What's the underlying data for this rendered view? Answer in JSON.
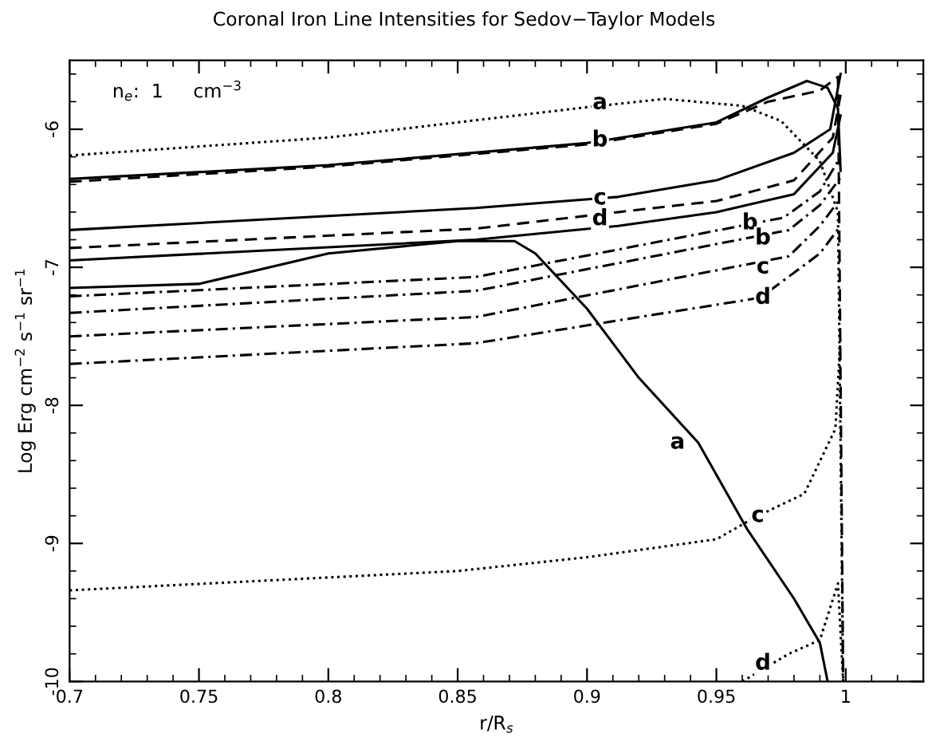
{
  "chart_data": {
    "type": "line",
    "title": "Coronal Iron Line Intensities for Sedov−Taylor Models",
    "xlabel": "r/R$_{s}$",
    "ylabel": "Log Erg cm$^{−2}$ s$^{−1}$ sr$^{−1}$",
    "xlim": [
      0.7,
      1.03
    ],
    "xticks": [
      0.7,
      0.75,
      0.8,
      0.85,
      0.9,
      0.95,
      1
    ],
    "ylim": [
      -10,
      -5.5
    ],
    "yticks": [
      -10,
      -9,
      -8,
      -7,
      -6
    ],
    "grid": false,
    "legend": false,
    "marker": "none",
    "series": [
      {
        "color": "#000000",
        "line_style": "dotted",
        "x": [
          0.7,
          0.8,
          0.9,
          0.93,
          0.96,
          0.975,
          0.99,
          0.997,
          0.999
        ],
        "values": [
          -6.19,
          -6.06,
          -5.84,
          -5.78,
          -5.83,
          -5.94,
          -6.23,
          -6.6,
          -10
        ]
      },
      {
        "color": "#000000",
        "line_style": "solid",
        "x": [
          0.7,
          0.8,
          0.9,
          0.95,
          0.97,
          0.985,
          0.993,
          0.997,
          0.998
        ],
        "values": [
          -6.36,
          -6.26,
          -6.1,
          -5.95,
          -5.77,
          -5.65,
          -5.7,
          -5.85,
          -6.3
        ]
      },
      {
        "color": "#000000",
        "line_style": "dashed",
        "x": [
          0.7,
          0.8,
          0.9,
          0.95,
          0.97,
          0.99,
          0.997,
          0.999
        ],
        "values": [
          -6.38,
          -6.27,
          -6.11,
          -5.96,
          -5.8,
          -5.72,
          -5.62,
          -10
        ]
      },
      {
        "color": "#000000",
        "line_style": "solid",
        "x": [
          0.7,
          0.857,
          0.912,
          0.95,
          0.98,
          0.994,
          0.998
        ],
        "values": [
          -6.73,
          -6.57,
          -6.49,
          -6.37,
          -6.17,
          -6.0,
          -5.6
        ]
      },
      {
        "color": "#000000",
        "line_style": "dashed",
        "x": [
          0.7,
          0.857,
          0.912,
          0.95,
          0.98,
          0.995,
          0.998
        ],
        "values": [
          -6.86,
          -6.72,
          -6.6,
          -6.52,
          -6.37,
          -6.06,
          -5.75
        ]
      },
      {
        "color": "#000000",
        "line_style": "solid",
        "x": [
          0.7,
          0.857,
          0.912,
          0.95,
          0.98,
          0.995,
          0.998
        ],
        "values": [
          -6.95,
          -6.8,
          -6.7,
          -6.6,
          -6.47,
          -6.17,
          -5.9
        ]
      },
      {
        "color": "#000000",
        "line_style": "solid",
        "x": [
          0.7,
          0.75,
          0.8,
          0.85,
          0.872,
          0.88,
          0.9,
          0.92,
          0.943,
          0.962,
          0.98,
          0.99,
          0.993
        ],
        "values": [
          -7.15,
          -7.12,
          -6.9,
          -6.81,
          -6.81,
          -6.9,
          -7.3,
          -7.8,
          -8.27,
          -8.9,
          -9.4,
          -9.72,
          -10
        ]
      },
      {
        "color": "#000000",
        "line_style": "dashdot",
        "x": [
          0.7,
          0.857,
          0.976,
          0.99,
          0.998
        ],
        "values": [
          -7.21,
          -7.07,
          -6.64,
          -6.45,
          -6.2
        ]
      },
      {
        "color": "#000000",
        "line_style": "dashdot",
        "x": [
          0.7,
          0.857,
          0.978,
          0.99,
          0.998
        ],
        "values": [
          -7.33,
          -7.17,
          -6.73,
          -6.55,
          -6.35
        ]
      },
      {
        "color": "#000000",
        "line_style": "dashdot",
        "x": [
          0.7,
          0.857,
          0.978,
          0.99,
          0.998
        ],
        "values": [
          -7.5,
          -7.36,
          -6.92,
          -6.7,
          -6.5
        ]
      },
      {
        "color": "#000000",
        "line_style": "dashdot",
        "x": [
          0.7,
          0.857,
          0.967,
          0.99,
          0.998
        ],
        "values": [
          -7.7,
          -7.55,
          -7.22,
          -6.9,
          -6.7
        ]
      },
      {
        "color": "#000000",
        "line_style": "dotted",
        "x": [
          0.7,
          0.85,
          0.9,
          0.95,
          0.965,
          0.984,
          0.996,
          0.998
        ],
        "values": [
          -9.34,
          -9.2,
          -9.1,
          -8.97,
          -8.81,
          -8.64,
          -8.17,
          -7.5
        ]
      },
      {
        "color": "#000000",
        "line_style": "dotted",
        "x": [
          0.96,
          0.978,
          0.99,
          0.997,
          0.999
        ],
        "values": [
          -10,
          -9.8,
          -9.7,
          -9.29,
          -10
        ]
      }
    ],
    "annotations": [
      "n$_{e}$:  1     cm$^{−3}$",
      {
        "text": "a",
        "x": 0.905,
        "y": -5.81
      },
      {
        "text": "b",
        "x": 0.905,
        "y": -6.08
      },
      {
        "text": "c",
        "x": 0.905,
        "y": -6.5
      },
      {
        "text": "d",
        "x": 0.905,
        "y": -6.65
      },
      {
        "text": "b",
        "x": 0.963,
        "y": -6.68
      },
      {
        "text": "b",
        "x": 0.968,
        "y": -6.79
      },
      {
        "text": "c",
        "x": 0.968,
        "y": -7.0
      },
      {
        "text": "d",
        "x": 0.968,
        "y": -7.22
      },
      {
        "text": "a",
        "x": 0.935,
        "y": -8.27
      },
      {
        "text": "c",
        "x": 0.966,
        "y": -8.8
      },
      {
        "text": "d",
        "x": 0.968,
        "y": -9.87
      }
    ]
  }
}
